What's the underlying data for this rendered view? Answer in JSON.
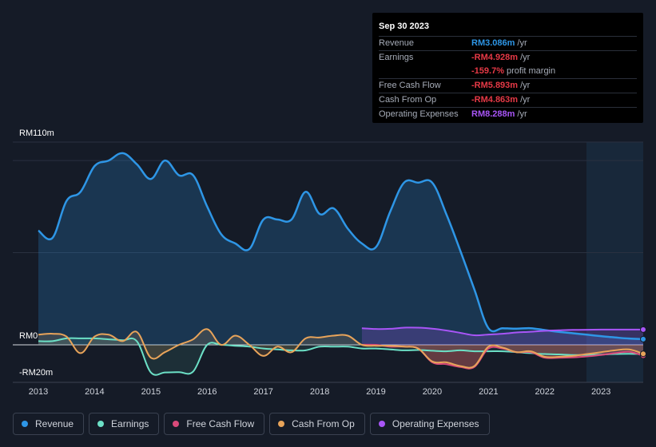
{
  "tooltip": {
    "date": "Sep 30 2023",
    "rows": [
      {
        "label": "Revenue",
        "value": "RM3.086m",
        "unit": "/yr",
        "color": "#2e96e6"
      },
      {
        "label": "Earnings",
        "value": "-RM4.928m",
        "unit": "/yr",
        "color": "#e63946"
      },
      {
        "label": "",
        "value": "-159.7%",
        "unit": "profit margin",
        "color": "#e63946"
      },
      {
        "label": "Free Cash Flow",
        "value": "-RM5.893m",
        "unit": "/yr",
        "color": "#e63946"
      },
      {
        "label": "Cash From Op",
        "value": "-RM4.863m",
        "unit": "/yr",
        "color": "#e63946"
      },
      {
        "label": "Operating Expenses",
        "value": "RM8.288m",
        "unit": "/yr",
        "color": "#a855f7"
      }
    ]
  },
  "legend": [
    {
      "label": "Revenue",
      "color": "#2e96e6"
    },
    {
      "label": "Earnings",
      "color": "#6ce0c6"
    },
    {
      "label": "Free Cash Flow",
      "color": "#d94a7a"
    },
    {
      "label": "Cash From Op",
      "color": "#e8a45a"
    },
    {
      "label": "Operating Expenses",
      "color": "#a855f7"
    }
  ],
  "chart_data": {
    "type": "area",
    "y_axis_labels": [
      "RM110m",
      "RM0",
      "-RM20m"
    ],
    "ylim": [
      -20,
      110
    ],
    "x_ticks": [
      "2013",
      "2014",
      "2015",
      "2016",
      "2017",
      "2018",
      "2019",
      "2020",
      "2021",
      "2022",
      "2023"
    ],
    "xlim": [
      2013,
      2023.75
    ],
    "forecast_start": 2022.75,
    "series": [
      {
        "name": "Revenue",
        "color": "#2e96e6",
        "points": [
          [
            2013.0,
            62
          ],
          [
            2013.25,
            58
          ],
          [
            2013.5,
            78
          ],
          [
            2013.75,
            83
          ],
          [
            2014.0,
            97
          ],
          [
            2014.25,
            100
          ],
          [
            2014.5,
            104
          ],
          [
            2014.75,
            98
          ],
          [
            2015.0,
            90
          ],
          [
            2015.25,
            100
          ],
          [
            2015.5,
            92
          ],
          [
            2015.75,
            92
          ],
          [
            2016.0,
            75
          ],
          [
            2016.25,
            60
          ],
          [
            2016.5,
            55
          ],
          [
            2016.75,
            52
          ],
          [
            2017.0,
            68
          ],
          [
            2017.25,
            68
          ],
          [
            2017.5,
            68
          ],
          [
            2017.75,
            83
          ],
          [
            2018.0,
            71
          ],
          [
            2018.25,
            74
          ],
          [
            2018.5,
            63
          ],
          [
            2018.75,
            55
          ],
          [
            2019.0,
            53
          ],
          [
            2019.25,
            72
          ],
          [
            2019.5,
            88
          ],
          [
            2019.75,
            88
          ],
          [
            2020.0,
            88
          ],
          [
            2020.25,
            71
          ],
          [
            2020.5,
            51
          ],
          [
            2020.75,
            30
          ],
          [
            2021.0,
            9
          ],
          [
            2021.25,
            9
          ],
          [
            2021.5,
            8.8
          ],
          [
            2021.75,
            9
          ],
          [
            2022.0,
            8
          ],
          [
            2022.25,
            7
          ],
          [
            2022.5,
            6.3
          ],
          [
            2022.75,
            5.5
          ],
          [
            2023.0,
            4.7
          ],
          [
            2023.25,
            4
          ],
          [
            2023.5,
            3.4
          ],
          [
            2023.75,
            3.086
          ]
        ]
      },
      {
        "name": "Operating Expenses",
        "color": "#a855f7",
        "points": [
          [
            2018.75,
            9
          ],
          [
            2019.0,
            8.6
          ],
          [
            2019.25,
            8.7
          ],
          [
            2019.5,
            9.3
          ],
          [
            2019.75,
            9.3
          ],
          [
            2020.0,
            8.8
          ],
          [
            2020.25,
            7.8
          ],
          [
            2020.5,
            6.5
          ],
          [
            2020.75,
            5.2
          ],
          [
            2021.0,
            5.6
          ],
          [
            2021.25,
            6
          ],
          [
            2021.5,
            6.7
          ],
          [
            2021.75,
            7.1
          ],
          [
            2022.0,
            7.6
          ],
          [
            2022.25,
            7.9
          ],
          [
            2022.5,
            8.1
          ],
          [
            2022.75,
            8.2
          ],
          [
            2023.0,
            8.25
          ],
          [
            2023.25,
            8.27
          ],
          [
            2023.5,
            8.28
          ],
          [
            2023.75,
            8.288
          ]
        ]
      },
      {
        "name": "Earnings",
        "color": "#6ce0c6",
        "points": [
          [
            2013.0,
            2
          ],
          [
            2013.25,
            2
          ],
          [
            2013.5,
            3.5
          ],
          [
            2013.75,
            3.5
          ],
          [
            2014.0,
            3.5
          ],
          [
            2014.25,
            3
          ],
          [
            2014.5,
            2.5
          ],
          [
            2014.75,
            2
          ],
          [
            2015.0,
            -15
          ],
          [
            2015.25,
            -15
          ],
          [
            2015.5,
            -14.8
          ],
          [
            2015.75,
            -14.5
          ],
          [
            2016.0,
            0
          ],
          [
            2016.25,
            0
          ],
          [
            2016.5,
            -0.5
          ],
          [
            2016.75,
            -1
          ],
          [
            2017.0,
            -2
          ],
          [
            2017.25,
            -2.5
          ],
          [
            2017.5,
            -3
          ],
          [
            2017.75,
            -3
          ],
          [
            2018.0,
            -1
          ],
          [
            2018.25,
            -1
          ],
          [
            2018.5,
            -1
          ],
          [
            2018.75,
            -2
          ],
          [
            2019.0,
            -2
          ],
          [
            2019.25,
            -2.5
          ],
          [
            2019.5,
            -3
          ],
          [
            2019.75,
            -2.8
          ],
          [
            2020.0,
            -3.2
          ],
          [
            2020.25,
            -3.5
          ],
          [
            2020.5,
            -3
          ],
          [
            2020.75,
            -3.5
          ],
          [
            2021.0,
            -3.5
          ],
          [
            2021.25,
            -3.5
          ],
          [
            2021.5,
            -4
          ],
          [
            2021.75,
            -4.5
          ],
          [
            2022.0,
            -5
          ],
          [
            2022.25,
            -5.2
          ],
          [
            2022.5,
            -5.5
          ],
          [
            2022.75,
            -5.5
          ],
          [
            2023.0,
            -5.3
          ],
          [
            2023.25,
            -5
          ],
          [
            2023.5,
            -4.9
          ],
          [
            2023.75,
            -4.928
          ]
        ]
      },
      {
        "name": "Free Cash Flow",
        "color": "#d94a7a",
        "points": [
          [
            2018.75,
            0
          ],
          [
            2019.0,
            0
          ],
          [
            2019.25,
            -1
          ],
          [
            2019.5,
            -1
          ],
          [
            2019.75,
            -2
          ],
          [
            2020.0,
            -9.5
          ],
          [
            2020.25,
            -10.5
          ],
          [
            2020.5,
            -12
          ],
          [
            2020.75,
            -12
          ],
          [
            2021.0,
            -2
          ],
          [
            2021.25,
            -2
          ],
          [
            2021.5,
            -4
          ],
          [
            2021.75,
            -4
          ],
          [
            2022.0,
            -7
          ],
          [
            2022.25,
            -7
          ],
          [
            2022.5,
            -6.8
          ],
          [
            2022.75,
            -6.3
          ],
          [
            2023.0,
            -5.5
          ],
          [
            2023.25,
            -4.5
          ],
          [
            2023.5,
            -3.8
          ],
          [
            2023.75,
            -5.893
          ]
        ]
      },
      {
        "name": "Cash From Op",
        "color": "#e8a45a",
        "points": [
          [
            2013.0,
            5.5
          ],
          [
            2013.25,
            6
          ],
          [
            2013.5,
            4.5
          ],
          [
            2013.75,
            -4.5
          ],
          [
            2014.0,
            4.5
          ],
          [
            2014.25,
            5.5
          ],
          [
            2014.5,
            2
          ],
          [
            2014.75,
            7
          ],
          [
            2015.0,
            -7
          ],
          [
            2015.25,
            -4
          ],
          [
            2015.5,
            0
          ],
          [
            2015.75,
            3
          ],
          [
            2016.0,
            8.5
          ],
          [
            2016.25,
            0
          ],
          [
            2016.5,
            5
          ],
          [
            2016.75,
            0
          ],
          [
            2017.0,
            -6
          ],
          [
            2017.25,
            -1
          ],
          [
            2017.5,
            -4
          ],
          [
            2017.75,
            3.5
          ],
          [
            2018.0,
            4
          ],
          [
            2018.25,
            5
          ],
          [
            2018.5,
            5
          ],
          [
            2018.75,
            0
          ],
          [
            2019.0,
            -0.5
          ],
          [
            2019.25,
            -0.5
          ],
          [
            2019.5,
            -1
          ],
          [
            2019.75,
            -2
          ],
          [
            2020.0,
            -9
          ],
          [
            2020.25,
            -9.5
          ],
          [
            2020.5,
            -11.5
          ],
          [
            2020.75,
            -11.5
          ],
          [
            2021.0,
            -1
          ],
          [
            2021.25,
            -1.5
          ],
          [
            2021.5,
            -4
          ],
          [
            2021.75,
            -3.5
          ],
          [
            2022.0,
            -6.5
          ],
          [
            2022.25,
            -6.5
          ],
          [
            2022.5,
            -6
          ],
          [
            2022.75,
            -5
          ],
          [
            2023.0,
            -4
          ],
          [
            2023.25,
            -3
          ],
          [
            2023.5,
            -2.5
          ],
          [
            2023.75,
            -4.863
          ]
        ]
      }
    ]
  }
}
